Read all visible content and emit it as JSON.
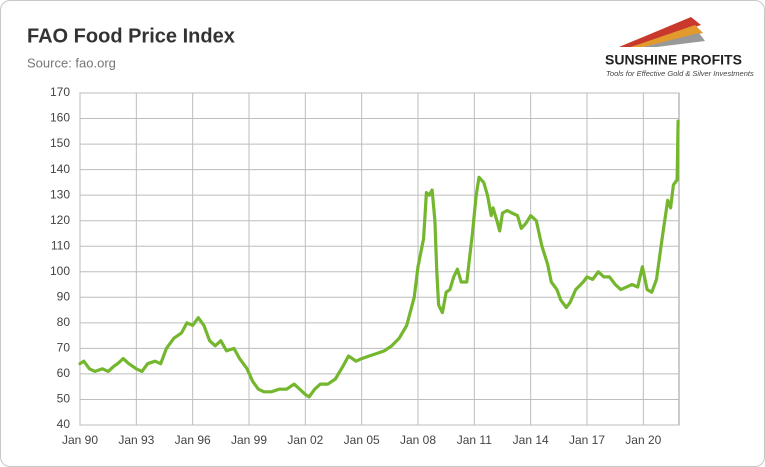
{
  "chart_data": {
    "type": "line",
    "title": "FAO Food Price Index",
    "subtitle": "Source: fao.org",
    "xlim": [
      1990,
      2021.9
    ],
    "xticks": [
      {
        "value": 1990,
        "label": "Jan 90"
      },
      {
        "value": 1993,
        "label": "Jan 93"
      },
      {
        "value": 1996,
        "label": "Jan 96"
      },
      {
        "value": 1999,
        "label": "Jan 99"
      },
      {
        "value": 2002,
        "label": "Jan 02"
      },
      {
        "value": 2005,
        "label": "Jan 05"
      },
      {
        "value": 2008,
        "label": "Jan 08"
      },
      {
        "value": 2011,
        "label": "Jan 11"
      },
      {
        "value": 2014,
        "label": "Jan 14"
      },
      {
        "value": 2017,
        "label": "Jan 17"
      },
      {
        "value": 2020,
        "label": "Jan 20"
      }
    ],
    "ylim": [
      40,
      170
    ],
    "yticks": [
      40,
      50,
      60,
      70,
      80,
      90,
      100,
      110,
      120,
      130,
      140,
      150,
      160,
      170
    ],
    "grid": true,
    "x": [
      1990.0,
      1990.2,
      1990.5,
      1990.8,
      1991.2,
      1991.5,
      1991.8,
      1992.0,
      1992.3,
      1992.6,
      1993.0,
      1993.3,
      1993.6,
      1994.0,
      1994.3,
      1994.6,
      1995.0,
      1995.4,
      1995.7,
      1996.0,
      1996.3,
      1996.6,
      1996.9,
      1997.2,
      1997.5,
      1997.8,
      1998.2,
      1998.5,
      1998.9,
      1999.2,
      1999.5,
      1999.8,
      2000.2,
      2000.6,
      2001.0,
      2001.4,
      2001.7,
      2002.0,
      2002.2,
      2002.5,
      2002.8,
      2003.2,
      2003.6,
      2004.0,
      2004.3,
      2004.7,
      2005.0,
      2005.4,
      2005.8,
      2006.2,
      2006.6,
      2007.0,
      2007.4,
      2007.8,
      2008.0,
      2008.3,
      2008.45,
      2008.6,
      2008.75,
      2008.9,
      2009.0,
      2009.1,
      2009.3,
      2009.5,
      2009.7,
      2009.9,
      2010.1,
      2010.3,
      2010.6,
      2010.9,
      2011.1,
      2011.25,
      2011.5,
      2011.7,
      2011.9,
      2012.0,
      2012.2,
      2012.35,
      2012.5,
      2012.75,
      2013.0,
      2013.3,
      2013.5,
      2013.75,
      2014.0,
      2014.3,
      2014.6,
      2014.9,
      2015.1,
      2015.4,
      2015.6,
      2015.9,
      2016.1,
      2016.4,
      2016.8,
      2017.0,
      2017.3,
      2017.6,
      2017.9,
      2018.2,
      2018.5,
      2018.8,
      2019.1,
      2019.4,
      2019.7,
      2019.95,
      2020.2,
      2020.45,
      2020.7,
      2021.0,
      2021.3,
      2021.45,
      2021.6,
      2021.8,
      2021.85
    ],
    "series": [
      {
        "name": "FAO Food Price Index",
        "color": "#74b72e",
        "values": [
          64,
          65,
          62,
          61,
          62,
          61,
          63,
          64,
          66,
          64,
          62,
          61,
          64,
          65,
          64,
          70,
          74,
          76,
          80,
          79,
          82,
          79,
          73,
          71,
          73,
          69,
          70,
          66,
          62,
          57,
          54,
          53,
          53,
          54,
          54,
          56,
          54,
          52,
          51,
          54,
          56,
          56,
          58,
          63,
          67,
          65,
          66,
          67,
          68,
          69,
          71,
          74,
          79,
          90,
          102,
          113,
          131,
          130,
          132,
          120,
          100,
          87,
          84,
          92,
          93,
          98,
          101,
          96,
          96,
          115,
          130,
          137,
          135,
          130,
          122,
          125,
          120,
          116,
          123,
          124,
          123,
          122,
          117,
          119,
          122,
          120,
          110,
          103,
          96,
          93,
          89,
          86,
          88,
          93,
          96,
          98,
          97,
          100,
          98,
          98,
          95,
          93,
          94,
          95,
          94,
          102,
          93,
          92,
          97,
          113,
          128,
          125,
          134,
          136,
          159
        ]
      }
    ]
  },
  "brand": {
    "name": "SUNSHINE PROFITS",
    "tagline": "Tools for Effective Gold & Silver Investments"
  }
}
